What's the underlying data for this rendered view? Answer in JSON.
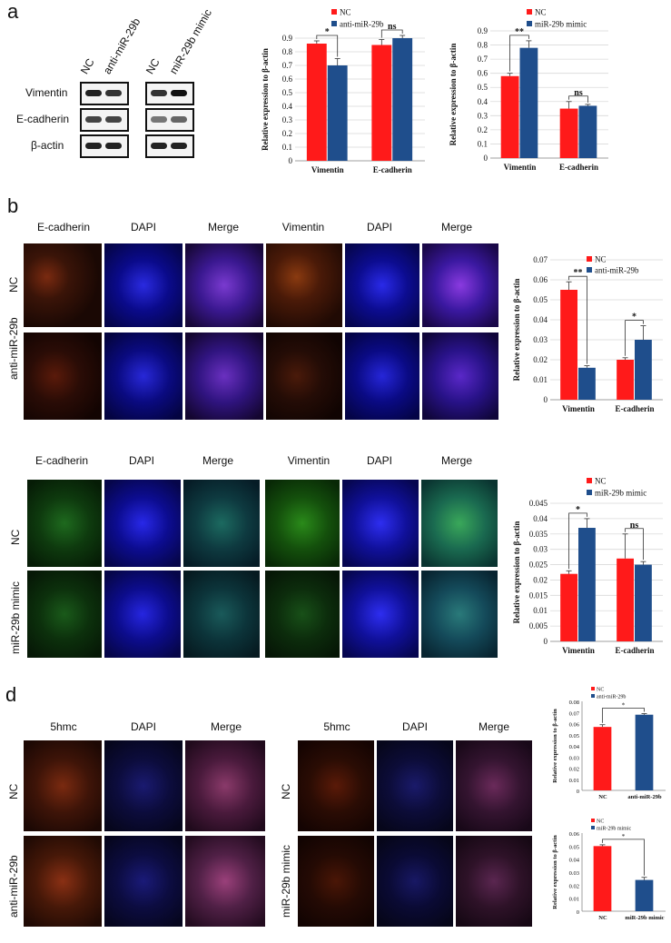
{
  "panels": {
    "a": {
      "letter": "a",
      "lanes": [
        "NC",
        "anti-miR-29b",
        "NC",
        "miR-29b mimic"
      ],
      "rows": [
        "Vimentin",
        "E-cadherin",
        "β-actin"
      ]
    },
    "b": {
      "letter": "b",
      "top_cols_left": [
        "E-cadherin",
        "DAPI",
        "Merge"
      ],
      "top_cols_right": [
        "Vimentin",
        "DAPI",
        "Merge"
      ],
      "top_rows": [
        "NC",
        "anti-miR-29b"
      ],
      "bottom_cols_left": [
        "E-cadherin",
        "DAPI",
        "Merge"
      ],
      "bottom_cols_right": [
        "Vimentin",
        "DAPI",
        "Merge"
      ],
      "bottom_rows": [
        "NC",
        "miR-29b mimic"
      ]
    },
    "d": {
      "letter": "d",
      "cols_left": [
        "5hmc",
        "DAPI",
        "Merge"
      ],
      "cols_right": [
        "5hmc",
        "DAPI",
        "Merge"
      ],
      "rows_left": [
        "NC",
        "anti-miR-29b"
      ],
      "rows_right": [
        "NC",
        "miR-29b mimic"
      ]
    }
  },
  "colors": {
    "nc": "#ff1a1a",
    "treat": "#1f4e8c",
    "grid": "#d9d9d9"
  },
  "chart_data": [
    {
      "id": "a1",
      "type": "bar",
      "categories": [
        "Vimentin",
        "E-cadherin"
      ],
      "series": [
        {
          "name": "NC",
          "values": [
            0.86,
            0.85
          ],
          "errors": [
            0.02,
            0.04
          ]
        },
        {
          "name": "anti-miR-29b",
          "values": [
            0.7,
            0.9
          ],
          "errors": [
            0.05,
            0.02
          ]
        }
      ],
      "ylabel": "Relative expression to β-actin",
      "ylim": [
        0,
        0.9
      ],
      "ticks": [
        "0",
        "0.1",
        "0.2",
        "0.3",
        "0.4",
        "0.5",
        "0.6",
        "0.7",
        "0.8",
        "0.9"
      ],
      "sig": [
        "*",
        "ns"
      ],
      "grid": true,
      "legend": "top"
    },
    {
      "id": "a2",
      "type": "bar",
      "categories": [
        "Vimentin",
        "E-cadherin"
      ],
      "series": [
        {
          "name": "NC",
          "values": [
            0.58,
            0.35
          ],
          "errors": [
            0.02,
            0.05
          ]
        },
        {
          "name": "miR-29b mimic",
          "values": [
            0.78,
            0.37
          ],
          "errors": [
            0.05,
            0.01
          ]
        }
      ],
      "ylabel": "Relative expression to β-actin",
      "ylim": [
        0,
        0.9
      ],
      "ticks": [
        "0",
        "0.1",
        "0.2",
        "0.3",
        "0.4",
        "0.5",
        "0.6",
        "0.7",
        "0.8",
        "0.9"
      ],
      "sig": [
        "**",
        "ns"
      ],
      "grid": true,
      "legend": "top"
    },
    {
      "id": "b1",
      "type": "bar",
      "categories": [
        "Vimentin",
        "E-cadherin"
      ],
      "series": [
        {
          "name": "NC",
          "values": [
            0.055,
            0.02
          ],
          "errors": [
            0.004,
            0.001
          ]
        },
        {
          "name": "anti-miR-29b",
          "values": [
            0.016,
            0.03
          ],
          "errors": [
            0.001,
            0.007
          ]
        }
      ],
      "ylabel": "Relative expression to β-actin",
      "ylim": [
        0,
        0.07
      ],
      "ticks": [
        "0",
        "0.01",
        "0.02",
        "0.03",
        "0.04",
        "0.05",
        "0.06",
        "0.07"
      ],
      "sig": [
        "**",
        "*"
      ],
      "grid": true,
      "legend": "top"
    },
    {
      "id": "b2",
      "type": "bar",
      "categories": [
        "Vimentin",
        "E-cadherin"
      ],
      "series": [
        {
          "name": "NC",
          "values": [
            0.022,
            0.027
          ],
          "errors": [
            0.001,
            0.008
          ]
        },
        {
          "name": "miR-29b mimic",
          "values": [
            0.037,
            0.025
          ],
          "errors": [
            0.003,
            0.001
          ]
        }
      ],
      "ylabel": "Relative expression to β-actin",
      "ylim": [
        0,
        0.045
      ],
      "ticks": [
        "0",
        "0.005",
        "0.01",
        "0.015",
        "0.02",
        "0.025",
        "0.03",
        "0.035",
        "0.04",
        "0.045"
      ],
      "sig": [
        "*",
        "ns"
      ],
      "grid": true,
      "legend": "top"
    },
    {
      "id": "d1",
      "type": "bar",
      "categories": [
        "NC",
        "anti-miR-29b"
      ],
      "series": [
        {
          "name": "NC",
          "values": [
            0.057,
            null
          ],
          "errors": [
            0.002,
            null
          ]
        },
        {
          "name": "anti-miR-29b",
          "values": [
            null,
            0.068
          ],
          "errors": [
            null,
            0.001
          ]
        }
      ],
      "ylabel": "Relative expression to β-actin",
      "ylim": [
        0,
        0.08
      ],
      "ticks": [
        "0",
        "0.01",
        "0.02",
        "0.03",
        "0.04",
        "0.05",
        "0.06",
        "0.07",
        "0.08"
      ],
      "sig": [
        "*"
      ],
      "grid": false,
      "legend": "top"
    },
    {
      "id": "d2",
      "type": "bar",
      "categories": [
        "NC",
        "miR-29b mimic"
      ],
      "series": [
        {
          "name": "NC",
          "values": [
            0.05,
            null
          ],
          "errors": [
            0.001,
            null
          ]
        },
        {
          "name": "miR-29b mimic",
          "values": [
            null,
            0.024
          ],
          "errors": [
            null,
            0.002
          ]
        }
      ],
      "ylabel": "Relative expression to β-actin",
      "ylim": [
        0,
        0.06
      ],
      "ticks": [
        "0",
        "0.01",
        "0.02",
        "0.03",
        "0.04",
        "0.05",
        "0.06"
      ],
      "sig": [
        "*"
      ],
      "grid": false,
      "legend": "top"
    }
  ]
}
